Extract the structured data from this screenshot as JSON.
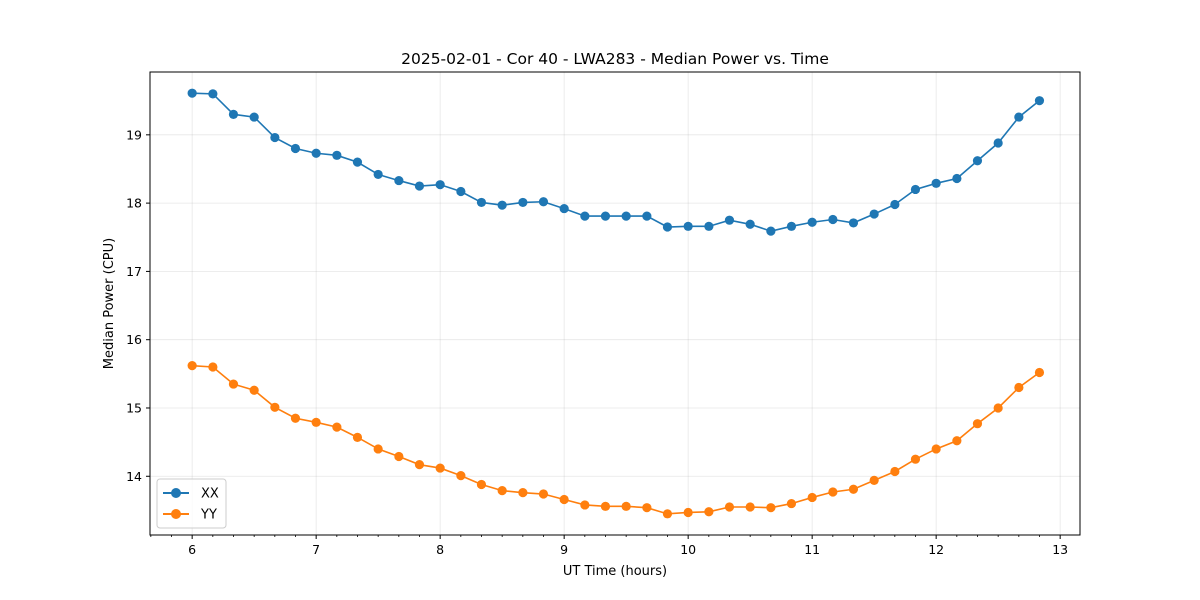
{
  "chart_data": {
    "type": "line",
    "title": "2025-02-01 - Cor 40 - LWA283 - Median Power vs. Time",
    "xlabel": "UT Time (hours)",
    "ylabel": "Median Power (CPU)",
    "xlim": [
      5.66,
      13.16
    ],
    "ylim": [
      13.14,
      19.92
    ],
    "xticks": [
      6,
      7,
      8,
      9,
      10,
      11,
      12,
      13
    ],
    "yticks": [
      14,
      15,
      16,
      17,
      18,
      19
    ],
    "grid": true,
    "legend_position": "bottom-left",
    "x": [
      6.0,
      6.167,
      6.333,
      6.5,
      6.667,
      6.833,
      7.0,
      7.167,
      7.333,
      7.5,
      7.667,
      7.833,
      8.0,
      8.167,
      8.333,
      8.5,
      8.667,
      8.833,
      9.0,
      9.167,
      9.333,
      9.5,
      9.667,
      9.833,
      10.0,
      10.167,
      10.333,
      10.5,
      10.667,
      10.833,
      11.0,
      11.167,
      11.333,
      11.5,
      11.667,
      11.833,
      12.0,
      12.167,
      12.333,
      12.5,
      12.667,
      12.833
    ],
    "series": [
      {
        "name": "XX",
        "color": "#1f77b4",
        "values": [
          19.61,
          19.6,
          19.3,
          19.26,
          18.96,
          18.8,
          18.73,
          18.7,
          18.6,
          18.42,
          18.33,
          18.25,
          18.27,
          18.17,
          18.01,
          17.97,
          18.01,
          18.02,
          17.92,
          17.81,
          17.81,
          17.81,
          17.81,
          17.65,
          17.66,
          17.66,
          17.75,
          17.69,
          17.59,
          17.66,
          17.72,
          17.76,
          17.71,
          17.84,
          17.98,
          18.2,
          18.29,
          18.36,
          18.62,
          18.88,
          19.26,
          19.5
        ]
      },
      {
        "name": "YY",
        "color": "#ff7f0e",
        "values": [
          15.62,
          15.6,
          15.35,
          15.26,
          15.01,
          14.85,
          14.79,
          14.72,
          14.57,
          14.4,
          14.29,
          14.17,
          14.12,
          14.01,
          13.88,
          13.79,
          13.76,
          13.74,
          13.66,
          13.58,
          13.56,
          13.56,
          13.54,
          13.45,
          13.47,
          13.48,
          13.55,
          13.55,
          13.54,
          13.6,
          13.69,
          13.77,
          13.81,
          13.94,
          14.07,
          14.25,
          14.4,
          14.52,
          14.77,
          15.0,
          15.3,
          15.52
        ]
      }
    ]
  }
}
